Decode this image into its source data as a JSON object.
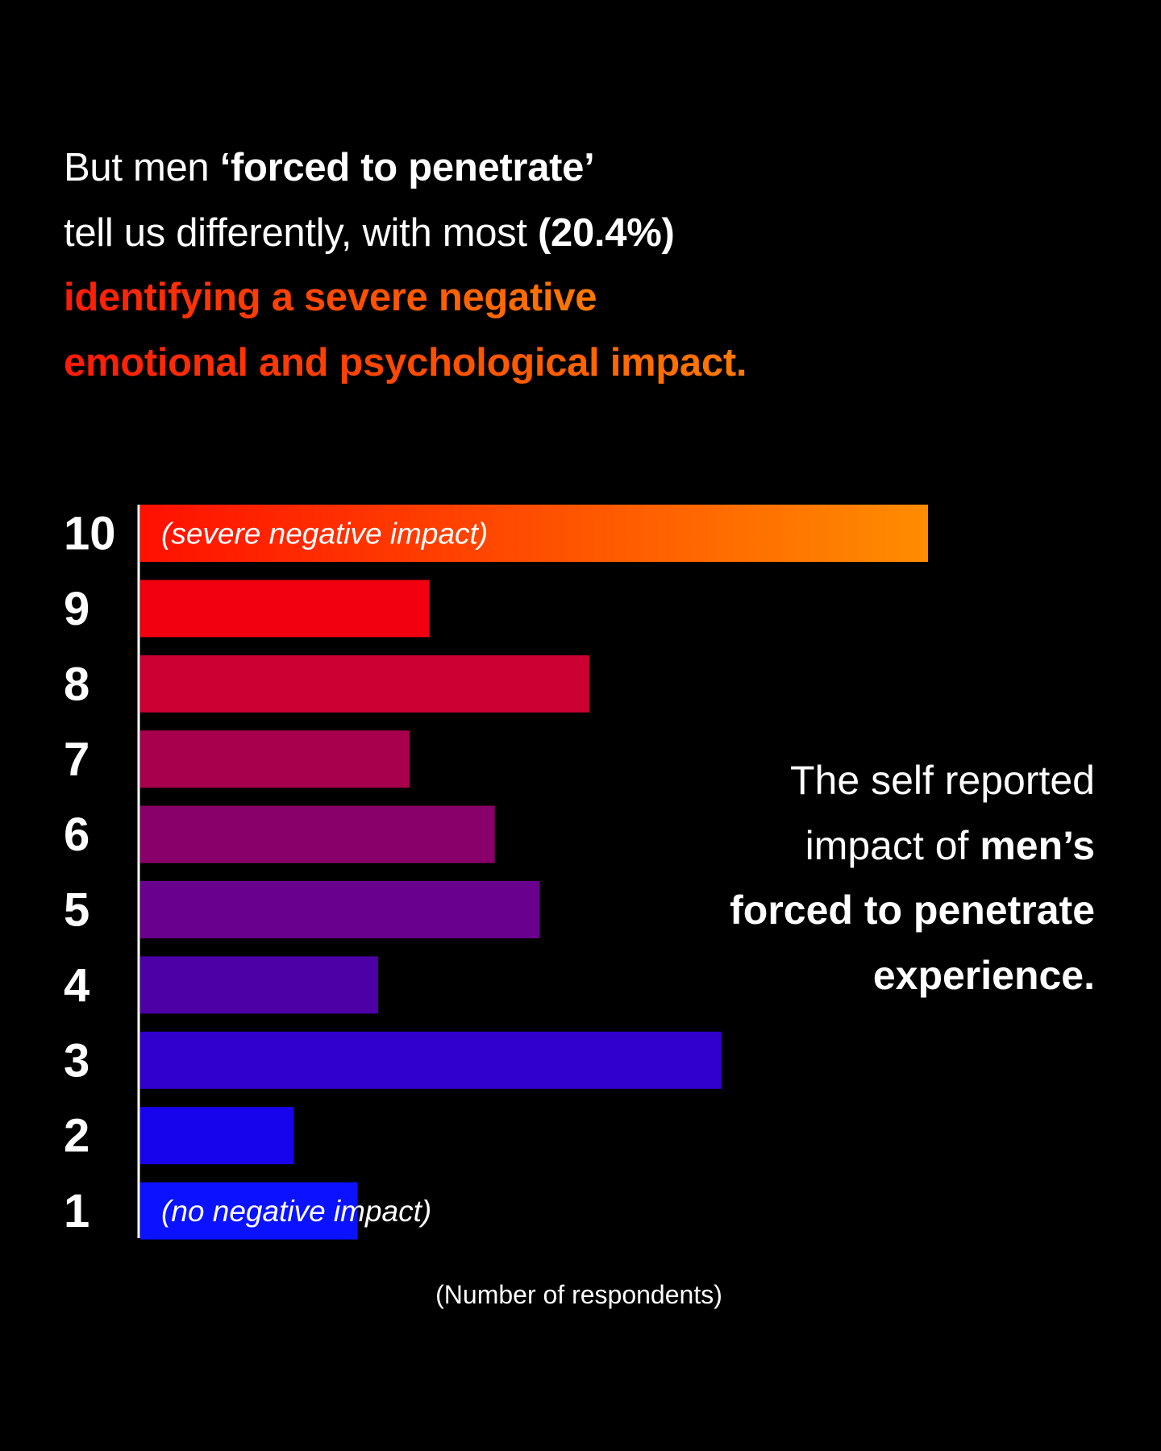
{
  "title": {
    "line1_a": "But men ",
    "line1_b": "‘forced to penetrate’",
    "line2_a": "tell us differently, with most ",
    "line2_b": "(20.4%)",
    "line3": "identifying a severe negative",
    "line4": "emotional and psychological impact."
  },
  "side_note": {
    "line1": "The self reported",
    "line2_a": "impact of ",
    "line2_b": "men’s",
    "line3": "forced to penetrate",
    "line4": "experience."
  },
  "chart_data": {
    "type": "bar",
    "orientation": "horizontal",
    "categories": [
      "10",
      "9",
      "8",
      "7",
      "6",
      "5",
      "4",
      "3",
      "2",
      "1"
    ],
    "values": [
      100,
      36.7,
      57,
      34.2,
      45,
      50.7,
      30.2,
      73.8,
      19.5,
      27.6
    ],
    "value_note": "relative bar lengths (no axis scale shown); score 10 = 20.4% of respondents",
    "colors": [
      "#ff1000",
      "#f2000f",
      "#cc0033",
      "#a8004c",
      "#8a006a",
      "#6a008e",
      "#4c00a6",
      "#3200cc",
      "#1804ec",
      "#0a12ff"
    ],
    "gradient_top": [
      "#ff1000",
      "#ff8c00"
    ],
    "annotations": {
      "top": "(severe negative impact)",
      "bottom": "(no negative impact)"
    },
    "xlabel": "(Number of respondents)",
    "ylabel": "",
    "grid": false
  }
}
